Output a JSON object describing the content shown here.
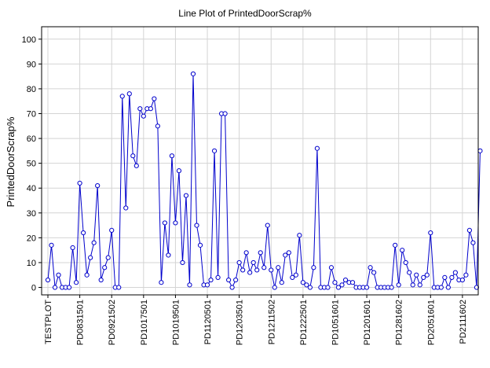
{
  "chart_data": {
    "type": "line",
    "title": "Line Plot of PrintedDoorScrap%",
    "xlabel": "",
    "ylabel": "PrintedDoorScrap%",
    "ylim": [
      -3,
      105
    ],
    "yticks": [
      0,
      10,
      20,
      30,
      40,
      50,
      60,
      70,
      80,
      90,
      100
    ],
    "grid": true,
    "xtick_labels": [
      {
        "index": 0,
        "label": "TESTPLOT"
      },
      {
        "index": 9,
        "label": "PD0831501"
      },
      {
        "index": 18,
        "label": "PD0921502"
      },
      {
        "index": 27,
        "label": "PD1017501"
      },
      {
        "index": 36,
        "label": "PD1019501"
      },
      {
        "index": 45,
        "label": "PD1120501"
      },
      {
        "index": 54,
        "label": "PD1203501"
      },
      {
        "index": 63,
        "label": "PD1211502"
      },
      {
        "index": 72,
        "label": "PD1222501"
      },
      {
        "index": 81,
        "label": "PD1051601"
      },
      {
        "index": 90,
        "label": "PD1201601"
      },
      {
        "index": 99,
        "label": "PD1281602"
      },
      {
        "index": 108,
        "label": "PD2051601"
      },
      {
        "index": 117,
        "label": "PD2111602"
      }
    ],
    "series": [
      {
        "values": [
          3,
          17,
          0,
          5,
          0,
          0,
          0,
          16,
          2,
          42,
          22,
          5,
          12,
          18,
          41,
          3,
          8,
          12,
          23,
          0,
          0,
          77,
          32,
          78,
          53,
          49,
          72,
          69,
          72,
          72,
          76,
          65,
          2,
          26,
          13,
          53,
          26,
          47,
          10,
          37,
          1,
          86,
          25,
          17,
          1,
          1,
          3,
          55,
          4,
          70,
          70,
          3,
          0,
          3,
          10,
          7,
          14,
          6,
          10,
          7,
          14,
          8,
          25,
          7,
          0,
          8,
          2,
          13,
          14,
          4,
          5,
          21,
          2,
          1,
          0,
          8,
          56,
          0,
          0,
          0,
          8,
          2,
          0,
          1,
          3,
          2,
          2,
          0,
          0,
          0,
          0,
          8,
          6,
          0,
          0,
          0,
          0,
          0,
          17,
          1,
          15,
          10,
          6,
          1,
          5,
          1,
          4,
          5,
          22,
          0,
          0,
          0,
          4,
          0,
          4,
          6,
          3,
          3,
          5,
          23,
          18,
          0,
          55
        ]
      }
    ]
  }
}
